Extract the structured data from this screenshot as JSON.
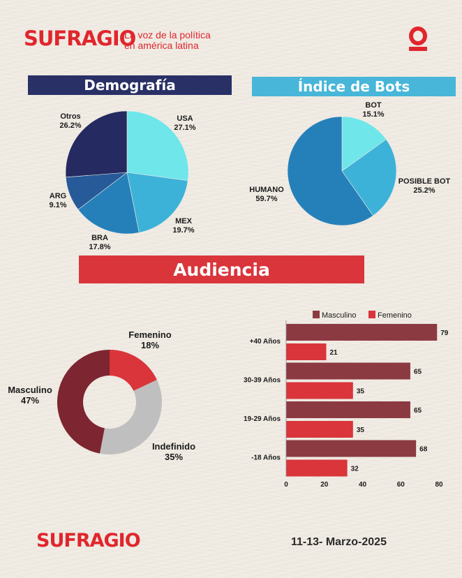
{
  "brand": {
    "logo": "SUFRAGIO",
    "tagline_line1": "La voz de la política",
    "tagline_line2": "en américa latina",
    "brand_icon": "sufragio-o-mark-icon",
    "accent_color": "#e0262d"
  },
  "sections": {
    "demografia": "Demografía",
    "bots": "Índice de Bots",
    "audiencia": "Audiencia"
  },
  "footer": {
    "logo": "SUFRAGIO",
    "date": "11-13- Marzo-2025"
  },
  "chart_data": [
    {
      "type": "pie",
      "section": "Demografía",
      "slices": [
        {
          "label": "USA",
          "pct": "27.1%",
          "value": 27.1,
          "color": "#6ee6ea"
        },
        {
          "label": "MEX",
          "pct": "19.7%",
          "value": 19.7,
          "color": "#3db2d8"
        },
        {
          "label": "BRA",
          "pct": "17.8%",
          "value": 17.8,
          "color": "#2580ba"
        },
        {
          "label": "ARG",
          "pct": "9.1%",
          "value": 9.1,
          "color": "#265a98"
        },
        {
          "label": "Otros",
          "pct": "26.2%",
          "value": 26.2,
          "color": "#252a60"
        }
      ]
    },
    {
      "type": "pie",
      "section": "Índice de Bots",
      "slices": [
        {
          "label": "BOT",
          "pct": "15.1%",
          "value": 15.1,
          "color": "#6ee6ea"
        },
        {
          "label": "POSIBLE BOT",
          "pct": "25.2%",
          "value": 25.2,
          "color": "#3db2d8"
        },
        {
          "label": "HUMANO",
          "pct": "59.7%",
          "value": 59.7,
          "color": "#2580ba"
        }
      ]
    },
    {
      "type": "pie",
      "subtype": "donut",
      "section": "Audiencia",
      "slices": [
        {
          "label": "Femenino",
          "pct": "18%",
          "value": 18,
          "color": "#d9353b"
        },
        {
          "label": "Indefinido",
          "pct": "35%",
          "value": 35,
          "color": "#bfbfbf"
        },
        {
          "label": "Masculino",
          "pct": "47%",
          "value": 47,
          "color": "#7d2530"
        }
      ]
    },
    {
      "type": "bar",
      "orientation": "horizontal",
      "section": "Audiencia",
      "categories": [
        "+40 Años",
        "30-39 Años",
        "19-29 Años",
        "-18 Años"
      ],
      "series": [
        {
          "name": "Masculino",
          "values": [
            79,
            65,
            65,
            68
          ],
          "color": "#8c3a42"
        },
        {
          "name": "Femenino",
          "values": [
            21,
            35,
            35,
            32
          ],
          "color": "#d9353b"
        }
      ],
      "x_ticks": [
        "0",
        "20",
        "40",
        "60",
        "80"
      ],
      "xlim": [
        0,
        80
      ],
      "legend": "top",
      "grid": false
    }
  ]
}
